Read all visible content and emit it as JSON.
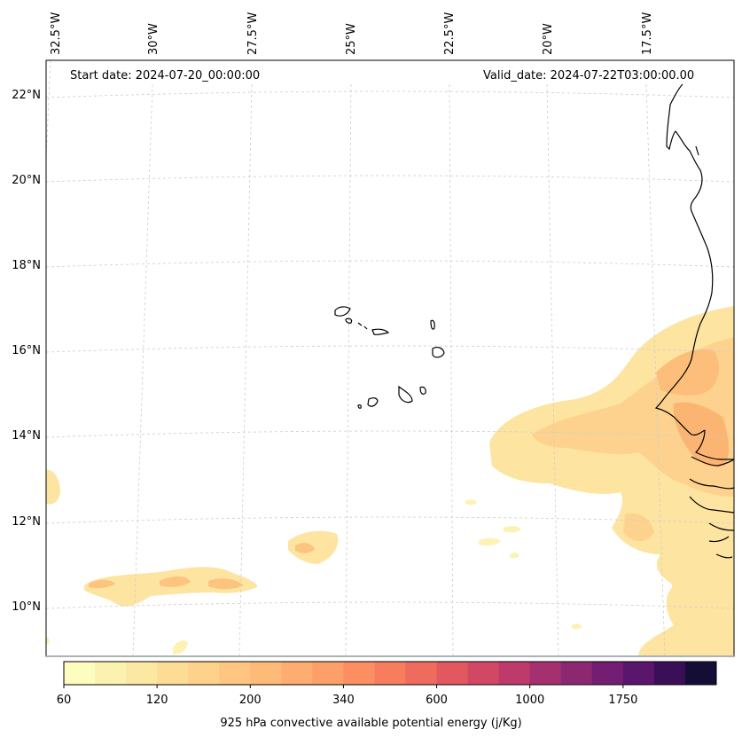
{
  "map": {
    "start_date": "Start date: 2024-07-20_00:00:00",
    "valid_date": "Valid_date: 2024-07-22T03:00:00.00",
    "lon_labels": [
      "32.5°W",
      "30°W",
      "27.5°W",
      "25°W",
      "22.5°W",
      "20°W",
      "17.5°W"
    ],
    "lat_labels": [
      "22°N",
      "20°N",
      "18°N",
      "16°N",
      "14°N",
      "12°N",
      "10°N"
    ],
    "coast_color": "#000000",
    "grid_color": "#cccccc",
    "gridlines": true
  },
  "colorbar": {
    "title": "925 hPa convective available potential energy (j/Kg)",
    "tick_labels": [
      "60",
      "120",
      "200",
      "340",
      "600",
      "1000",
      "1750"
    ],
    "colors": [
      "#fcfdbf",
      "#fcf2b0",
      "#fde8a3",
      "#fddd96",
      "#fed28a",
      "#fec680",
      "#febb77",
      "#fdad6f",
      "#fd9f68",
      "#fb8f62",
      "#f77d5e",
      "#ef6b5d",
      "#e3585f",
      "#d24864",
      "#bd3a6b",
      "#a5306f",
      "#8c2772",
      "#731e72",
      "#5a166c",
      "#3b0f58",
      "#140e36"
    ]
  }
}
